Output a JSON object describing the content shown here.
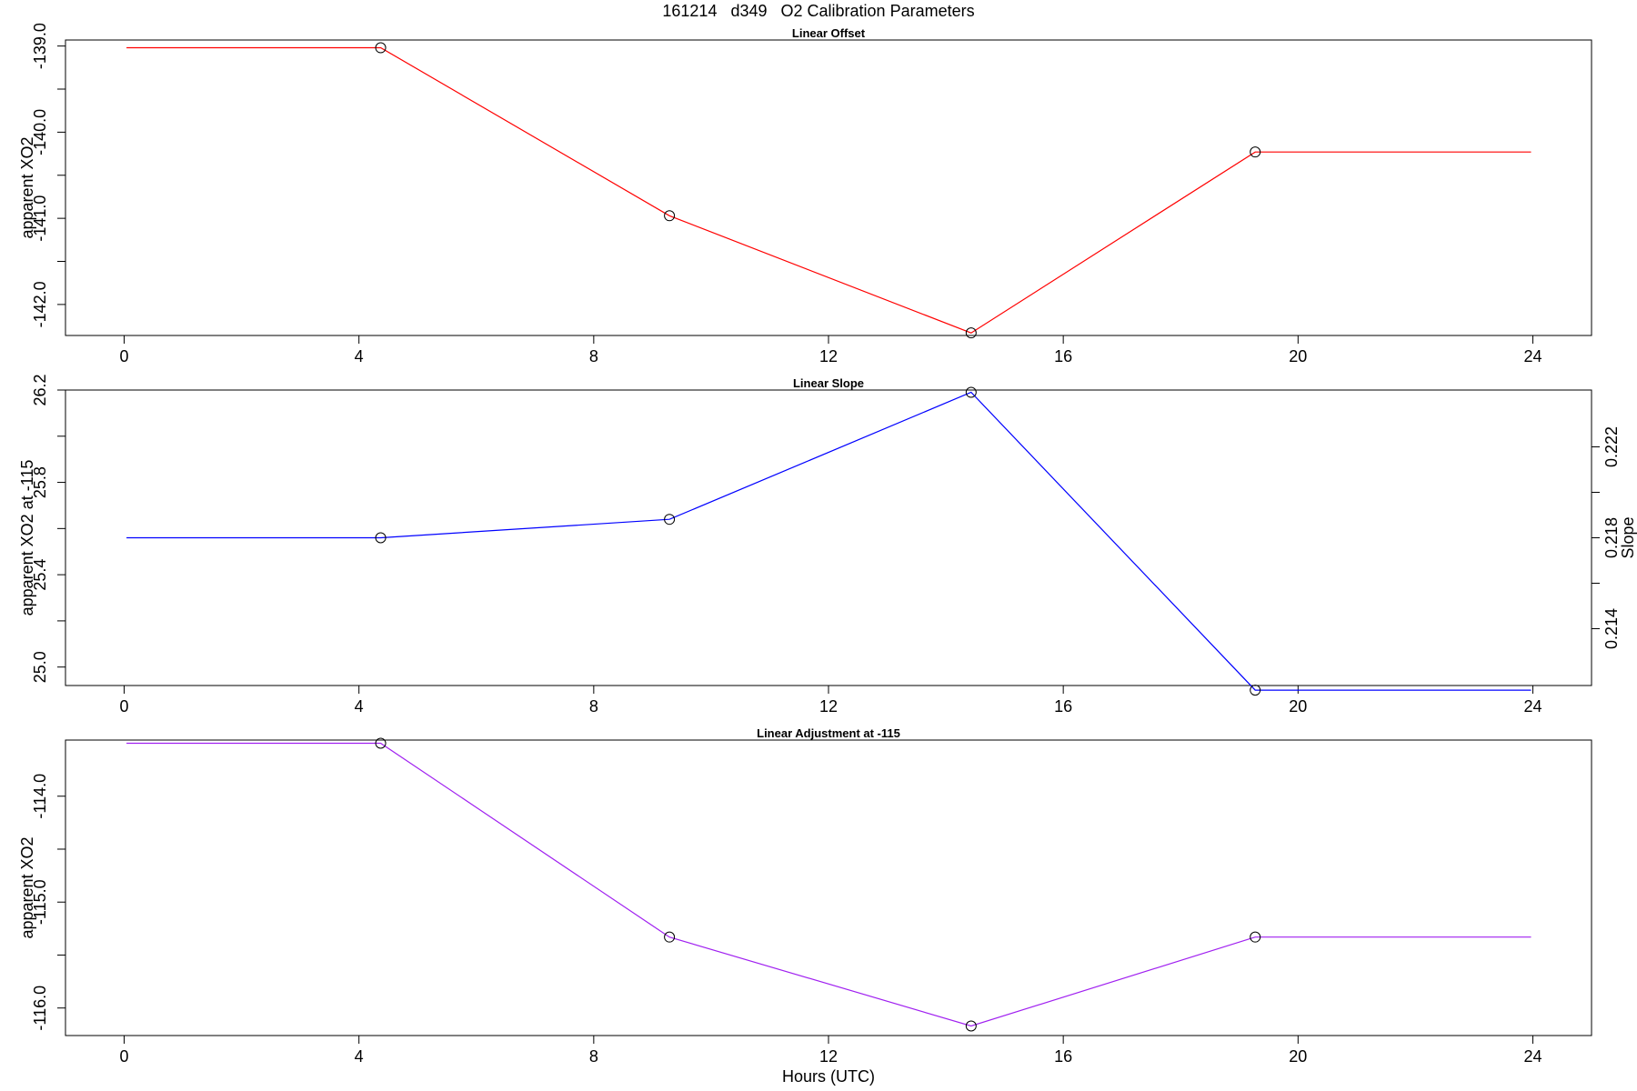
{
  "page": {
    "title": "161214   d349   O2 Calibration Parameters"
  },
  "chart_data": [
    {
      "type": "line",
      "title": "Linear Offset",
      "xlabel": "",
      "ylabel": "apparent XO2",
      "color": "#ff0000",
      "xlim": [
        -1.0,
        25.0
      ],
      "ylim": [
        -142.36,
        -138.93
      ],
      "xticks": [
        0,
        4,
        8,
        12,
        16,
        20,
        24
      ],
      "yticks": [
        -139.0,
        -140.0,
        -141.0,
        -142.0
      ],
      "ytick_minor": [
        -139.5,
        -140.5,
        -141.5
      ],
      "ytick_labels": [
        "-139.0",
        "-140.0",
        "-141.0",
        "-142.0"
      ],
      "line": {
        "x": [
          0.04,
          4.37,
          9.29,
          14.43,
          19.27,
          23.97
        ],
        "y": [
          -139.02,
          -139.02,
          -140.97,
          -142.33,
          -140.23,
          -140.23
        ]
      },
      "points": {
        "x": [
          4.37,
          9.29,
          14.43,
          19.27
        ],
        "y": [
          -139.02,
          -140.97,
          -142.33,
          -140.23
        ]
      }
    },
    {
      "type": "line",
      "title": "Linear Slope",
      "xlabel": "",
      "ylabel": "apparent XO2 at -115",
      "y2label": "Slope",
      "color": "#0000ff",
      "xlim": [
        -1.0,
        25.0
      ],
      "ylim": [
        24.92,
        26.2
      ],
      "xticks": [
        0,
        4,
        8,
        12,
        16,
        20,
        24
      ],
      "yticks": [
        25.0,
        25.4,
        25.8,
        26.2
      ],
      "ytick_minor": [
        25.2,
        25.6,
        26.0
      ],
      "ytick_labels": [
        "25.0",
        "25.4",
        "25.8",
        "26.2"
      ],
      "y2lim": [
        0.2115,
        0.2245
      ],
      "y2ticks": [
        0.214,
        0.218,
        0.222
      ],
      "y2tick_minor": [
        0.216,
        0.22
      ],
      "y2tick_labels": [
        "0.214",
        "0.218",
        "0.222"
      ],
      "line": {
        "x": [
          0.04,
          4.37,
          9.29,
          14.43,
          19.27,
          23.97
        ],
        "y": [
          25.56,
          25.56,
          25.64,
          26.19,
          24.9,
          24.9
        ]
      },
      "points": {
        "x": [
          4.37,
          9.29,
          14.43,
          19.27
        ],
        "y": [
          25.56,
          25.64,
          26.19,
          24.9
        ]
      }
    },
    {
      "type": "line",
      "title": "Linear Adjustment at -115",
      "xlabel": "Hours (UTC)",
      "ylabel": "apparent XO2",
      "color": "#a020f0",
      "xlim": [
        -1.0,
        25.0
      ],
      "ylim": [
        -116.26,
        -113.47
      ],
      "xticks": [
        0,
        4,
        8,
        12,
        16,
        20,
        24
      ],
      "yticks": [
        -114.0,
        -115.0,
        -116.0
      ],
      "ytick_minor": [
        -114.5,
        -115.5
      ],
      "ytick_labels": [
        "-114.0",
        "-115.0",
        "-116.0"
      ],
      "line": {
        "x": [
          0.04,
          4.37,
          9.29,
          14.43,
          19.27,
          23.97
        ],
        "y": [
          -113.5,
          -113.5,
          -115.33,
          -116.17,
          -115.33,
          -115.33
        ]
      },
      "points": {
        "x": [
          4.37,
          9.29,
          14.43,
          19.27
        ],
        "y": [
          -113.5,
          -115.33,
          -116.17,
          -115.33
        ]
      }
    }
  ]
}
